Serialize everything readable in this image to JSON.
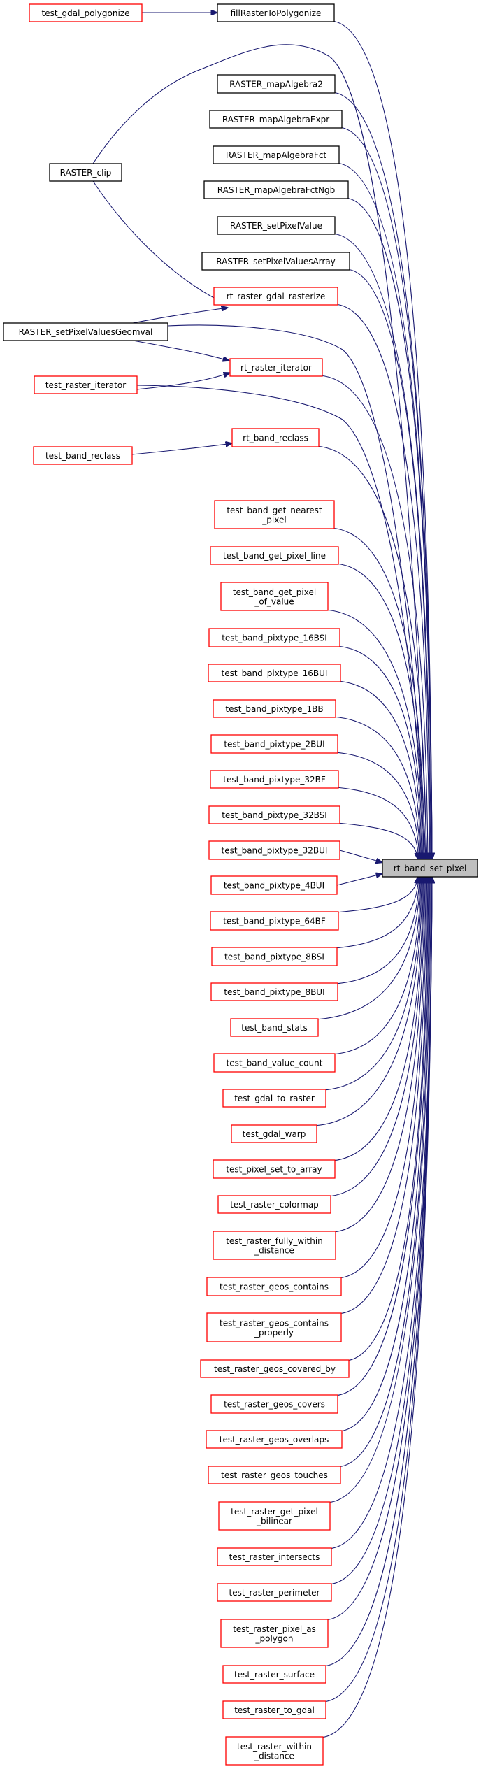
{
  "colors": {
    "edge": "#191970",
    "node_red_border": "#ff0000",
    "node_black_border": "#000000",
    "focus_fill": "#bfbfbf",
    "node_fill": "#ffffff"
  },
  "focus_node": "rt_band_set_pixel",
  "nodes": [
    {
      "id": "rt_band_set_pixel",
      "lines": [
        "rt_band_set_pixel"
      ],
      "border": "black",
      "focus": true
    },
    {
      "id": "test_gdal_polygonize",
      "lines": [
        "test_gdal_polygonize"
      ],
      "border": "red"
    },
    {
      "id": "fillRasterToPolygonize",
      "lines": [
        "fillRasterToPolygonize"
      ],
      "border": "black"
    },
    {
      "id": "RASTER_mapAlgebra2",
      "lines": [
        "RASTER_mapAlgebra2"
      ],
      "border": "black"
    },
    {
      "id": "RASTER_mapAlgebraExpr",
      "lines": [
        "RASTER_mapAlgebraExpr"
      ],
      "border": "black"
    },
    {
      "id": "RASTER_mapAlgebraFct",
      "lines": [
        "RASTER_mapAlgebraFct"
      ],
      "border": "black"
    },
    {
      "id": "RASTER_mapAlgebraFctNgb",
      "lines": [
        "RASTER_mapAlgebraFctNgb"
      ],
      "border": "black"
    },
    {
      "id": "RASTER_setPixelValue",
      "lines": [
        "RASTER_setPixelValue"
      ],
      "border": "black"
    },
    {
      "id": "RASTER_setPixelValuesArray",
      "lines": [
        "RASTER_setPixelValuesArray"
      ],
      "border": "black"
    },
    {
      "id": "RASTER_clip",
      "lines": [
        "RASTER_clip"
      ],
      "border": "black"
    },
    {
      "id": "rt_raster_gdal_rasterize",
      "lines": [
        "rt_raster_gdal_rasterize"
      ],
      "border": "red"
    },
    {
      "id": "RASTER_setPixelValuesGeomval",
      "lines": [
        "RASTER_setPixelValuesGeomval"
      ],
      "border": "black"
    },
    {
      "id": "rt_raster_iterator",
      "lines": [
        "rt_raster_iterator"
      ],
      "border": "red"
    },
    {
      "id": "test_raster_iterator",
      "lines": [
        "test_raster_iterator"
      ],
      "border": "red"
    },
    {
      "id": "rt_band_reclass",
      "lines": [
        "rt_band_reclass"
      ],
      "border": "red"
    },
    {
      "id": "test_band_reclass",
      "lines": [
        "test_band_reclass"
      ],
      "border": "red"
    },
    {
      "id": "test_band_get_nearest_pixel",
      "lines": [
        "test_band_get_nearest",
        "_pixel"
      ],
      "border": "red"
    },
    {
      "id": "test_band_get_pixel_line",
      "lines": [
        "test_band_get_pixel_line"
      ],
      "border": "red"
    },
    {
      "id": "test_band_get_pixel_of_value",
      "lines": [
        "test_band_get_pixel",
        "_of_value"
      ],
      "border": "red"
    },
    {
      "id": "test_band_pixtype_16BSI",
      "lines": [
        "test_band_pixtype_16BSI"
      ],
      "border": "red"
    },
    {
      "id": "test_band_pixtype_16BUI",
      "lines": [
        "test_band_pixtype_16BUI"
      ],
      "border": "red"
    },
    {
      "id": "test_band_pixtype_1BB",
      "lines": [
        "test_band_pixtype_1BB"
      ],
      "border": "red"
    },
    {
      "id": "test_band_pixtype_2BUI",
      "lines": [
        "test_band_pixtype_2BUI"
      ],
      "border": "red"
    },
    {
      "id": "test_band_pixtype_32BF",
      "lines": [
        "test_band_pixtype_32BF"
      ],
      "border": "red"
    },
    {
      "id": "test_band_pixtype_32BSI",
      "lines": [
        "test_band_pixtype_32BSI"
      ],
      "border": "red"
    },
    {
      "id": "test_band_pixtype_32BUI",
      "lines": [
        "test_band_pixtype_32BUI"
      ],
      "border": "red"
    },
    {
      "id": "test_band_pixtype_4BUI",
      "lines": [
        "test_band_pixtype_4BUI"
      ],
      "border": "red"
    },
    {
      "id": "test_band_pixtype_64BF",
      "lines": [
        "test_band_pixtype_64BF"
      ],
      "border": "red"
    },
    {
      "id": "test_band_pixtype_8BSI",
      "lines": [
        "test_band_pixtype_8BSI"
      ],
      "border": "red"
    },
    {
      "id": "test_band_pixtype_8BUI",
      "lines": [
        "test_band_pixtype_8BUI"
      ],
      "border": "red"
    },
    {
      "id": "test_band_stats",
      "lines": [
        "test_band_stats"
      ],
      "border": "red"
    },
    {
      "id": "test_band_value_count",
      "lines": [
        "test_band_value_count"
      ],
      "border": "red"
    },
    {
      "id": "test_gdal_to_raster",
      "lines": [
        "test_gdal_to_raster"
      ],
      "border": "red"
    },
    {
      "id": "test_gdal_warp",
      "lines": [
        "test_gdal_warp"
      ],
      "border": "red"
    },
    {
      "id": "test_pixel_set_to_array",
      "lines": [
        "test_pixel_set_to_array"
      ],
      "border": "red"
    },
    {
      "id": "test_raster_colormap",
      "lines": [
        "test_raster_colormap"
      ],
      "border": "red"
    },
    {
      "id": "test_raster_fully_within_distance",
      "lines": [
        "test_raster_fully_within",
        "_distance"
      ],
      "border": "red"
    },
    {
      "id": "test_raster_geos_contains",
      "lines": [
        "test_raster_geos_contains"
      ],
      "border": "red"
    },
    {
      "id": "test_raster_geos_contains_properly",
      "lines": [
        "test_raster_geos_contains",
        "_properly"
      ],
      "border": "red"
    },
    {
      "id": "test_raster_geos_covered_by",
      "lines": [
        "test_raster_geos_covered_by"
      ],
      "border": "red"
    },
    {
      "id": "test_raster_geos_covers",
      "lines": [
        "test_raster_geos_covers"
      ],
      "border": "red"
    },
    {
      "id": "test_raster_geos_overlaps",
      "lines": [
        "test_raster_geos_overlaps"
      ],
      "border": "red"
    },
    {
      "id": "test_raster_geos_touches",
      "lines": [
        "test_raster_geos_touches"
      ],
      "border": "red"
    },
    {
      "id": "test_raster_get_pixel_bilinear",
      "lines": [
        "test_raster_get_pixel",
        "_bilinear"
      ],
      "border": "red"
    },
    {
      "id": "test_raster_intersects",
      "lines": [
        "test_raster_intersects"
      ],
      "border": "red"
    },
    {
      "id": "test_raster_perimeter",
      "lines": [
        "test_raster_perimeter"
      ],
      "border": "red"
    },
    {
      "id": "test_raster_pixel_as_polygon",
      "lines": [
        "test_raster_pixel_as",
        "_polygon"
      ],
      "border": "red"
    },
    {
      "id": "test_raster_surface",
      "lines": [
        "test_raster_surface"
      ],
      "border": "red"
    },
    {
      "id": "test_raster_to_gdal",
      "lines": [
        "test_raster_to_gdal"
      ],
      "border": "red"
    },
    {
      "id": "test_raster_within_distance",
      "lines": [
        "test_raster_within",
        "_distance"
      ],
      "border": "red"
    }
  ],
  "edges": [
    [
      "test_gdal_polygonize",
      "fillRasterToPolygonize"
    ],
    [
      "fillRasterToPolygonize",
      "rt_band_set_pixel"
    ],
    [
      "RASTER_clip",
      "rt_band_set_pixel"
    ],
    [
      "RASTER_clip",
      "rt_raster_gdal_rasterize"
    ],
    [
      "RASTER_mapAlgebra2",
      "rt_band_set_pixel"
    ],
    [
      "RASTER_mapAlgebraExpr",
      "rt_band_set_pixel"
    ],
    [
      "RASTER_mapAlgebraFct",
      "rt_band_set_pixel"
    ],
    [
      "RASTER_mapAlgebraFctNgb",
      "rt_band_set_pixel"
    ],
    [
      "RASTER_setPixelValue",
      "rt_band_set_pixel"
    ],
    [
      "RASTER_setPixelValuesArray",
      "rt_band_set_pixel"
    ],
    [
      "rt_raster_gdal_rasterize",
      "rt_band_set_pixel"
    ],
    [
      "RASTER_setPixelValuesGeomval",
      "rt_raster_gdal_rasterize"
    ],
    [
      "RASTER_setPixelValuesGeomval",
      "rt_band_set_pixel"
    ],
    [
      "RASTER_setPixelValuesGeomval",
      "rt_raster_iterator"
    ],
    [
      "rt_raster_iterator",
      "rt_band_set_pixel"
    ],
    [
      "test_raster_iterator",
      "rt_raster_iterator"
    ],
    [
      "test_raster_iterator",
      "rt_band_set_pixel"
    ],
    [
      "rt_band_reclass",
      "rt_band_set_pixel"
    ],
    [
      "test_band_reclass",
      "rt_band_reclass"
    ],
    [
      "test_band_get_nearest_pixel",
      "rt_band_set_pixel"
    ],
    [
      "test_band_get_pixel_line",
      "rt_band_set_pixel"
    ],
    [
      "test_band_get_pixel_of_value",
      "rt_band_set_pixel"
    ],
    [
      "test_band_pixtype_16BSI",
      "rt_band_set_pixel"
    ],
    [
      "test_band_pixtype_16BUI",
      "rt_band_set_pixel"
    ],
    [
      "test_band_pixtype_1BB",
      "rt_band_set_pixel"
    ],
    [
      "test_band_pixtype_2BUI",
      "rt_band_set_pixel"
    ],
    [
      "test_band_pixtype_32BF",
      "rt_band_set_pixel"
    ],
    [
      "test_band_pixtype_32BSI",
      "rt_band_set_pixel"
    ],
    [
      "test_band_pixtype_32BUI",
      "rt_band_set_pixel"
    ],
    [
      "test_band_pixtype_4BUI",
      "rt_band_set_pixel"
    ],
    [
      "test_band_pixtype_64BF",
      "rt_band_set_pixel"
    ],
    [
      "test_band_pixtype_8BSI",
      "rt_band_set_pixel"
    ],
    [
      "test_band_pixtype_8BUI",
      "rt_band_set_pixel"
    ],
    [
      "test_band_stats",
      "rt_band_set_pixel"
    ],
    [
      "test_band_value_count",
      "rt_band_set_pixel"
    ],
    [
      "test_gdal_to_raster",
      "rt_band_set_pixel"
    ],
    [
      "test_gdal_warp",
      "rt_band_set_pixel"
    ],
    [
      "test_pixel_set_to_array",
      "rt_band_set_pixel"
    ],
    [
      "test_raster_colormap",
      "rt_band_set_pixel"
    ],
    [
      "test_raster_fully_within_distance",
      "rt_band_set_pixel"
    ],
    [
      "test_raster_geos_contains",
      "rt_band_set_pixel"
    ],
    [
      "test_raster_geos_contains_properly",
      "rt_band_set_pixel"
    ],
    [
      "test_raster_geos_covered_by",
      "rt_band_set_pixel"
    ],
    [
      "test_raster_geos_covers",
      "rt_band_set_pixel"
    ],
    [
      "test_raster_geos_overlaps",
      "rt_band_set_pixel"
    ],
    [
      "test_raster_geos_touches",
      "rt_band_set_pixel"
    ],
    [
      "test_raster_get_pixel_bilinear",
      "rt_band_set_pixel"
    ],
    [
      "test_raster_intersects",
      "rt_band_set_pixel"
    ],
    [
      "test_raster_perimeter",
      "rt_band_set_pixel"
    ],
    [
      "test_raster_pixel_as_polygon",
      "rt_band_set_pixel"
    ],
    [
      "test_raster_surface",
      "rt_band_set_pixel"
    ],
    [
      "test_raster_to_gdal",
      "rt_band_set_pixel"
    ],
    [
      "test_raster_within_distance",
      "rt_band_set_pixel"
    ]
  ]
}
